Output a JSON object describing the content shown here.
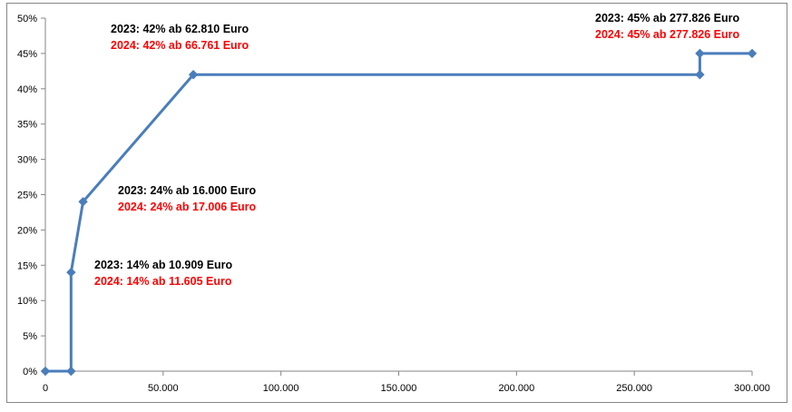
{
  "chart_data": {
    "type": "line",
    "x": [
      0,
      10909,
      10909,
      16000,
      62810,
      277826,
      277826,
      300000
    ],
    "series": [
      {
        "values": [
          0,
          0,
          0.14,
          0.24,
          0.42,
          0.42,
          0.45,
          0.45
        ],
        "color": "#4a7ebb"
      }
    ],
    "xlim": [
      0,
      300000
    ],
    "ylim": [
      0,
      0.5
    ],
    "x_ticks": [
      0,
      50000,
      100000,
      150000,
      200000,
      250000,
      300000
    ],
    "x_tick_labels": [
      "0",
      "50.000",
      "100.000",
      "150.000",
      "200.000",
      "250.000",
      "300.000"
    ],
    "y_ticks": [
      0,
      0.05,
      0.1,
      0.15,
      0.2,
      0.25,
      0.3,
      0.35,
      0.4,
      0.45,
      0.5
    ],
    "y_tick_labels": [
      "0%",
      "5%",
      "10%",
      "15%",
      "20%",
      "25%",
      "30%",
      "35%",
      "40%",
      "45%",
      "50%"
    ],
    "grid": false,
    "marker": "diamond",
    "annotations": [
      {
        "line1": "2023: 14% ab 10.909  Euro",
        "line2": "2024: 14% ab 11.605  Euro"
      },
      {
        "line1": "2023: 24% ab 16.000  Euro",
        "line2": "2024: 24% ab 17.006  Euro"
      },
      {
        "line1": "2023: 42% ab 62.810  Euro",
        "line2": "2024: 42% ab 66.761  Euro"
      },
      {
        "line1": "2023: 45% ab 277.826  Euro",
        "line2": "2024: 45% ab 277.826  Euro"
      }
    ],
    "annotation_colors": {
      "line1": "#000000",
      "line2": "#ff0000"
    }
  }
}
